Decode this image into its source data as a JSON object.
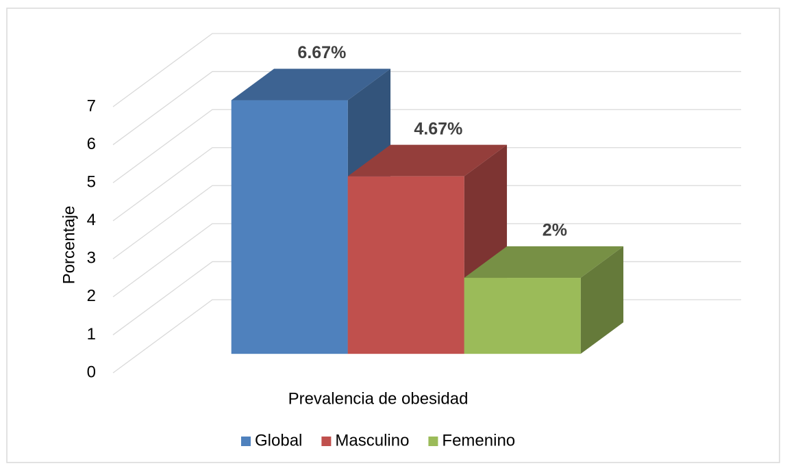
{
  "chart_data": {
    "type": "bar3d",
    "categories": [
      "Prevalencia de obesidad"
    ],
    "series": [
      {
        "name": "Global",
        "color": "#4f81bd",
        "values": [
          6.67
        ],
        "value_labels": [
          "6.67%"
        ]
      },
      {
        "name": "Masculino",
        "color": "#c0504d",
        "values": [
          4.67
        ],
        "value_labels": [
          "4.67%"
        ]
      },
      {
        "name": "Femenino",
        "color": "#9bbb59",
        "values": [
          2
        ],
        "value_labels": [
          "2%"
        ]
      }
    ],
    "y_label": "Porcentaje",
    "ylim": [
      0,
      7
    ],
    "yticks": [
      0,
      1,
      2,
      3,
      4,
      5,
      6,
      7
    ],
    "grid": true,
    "legend": "bottom"
  }
}
